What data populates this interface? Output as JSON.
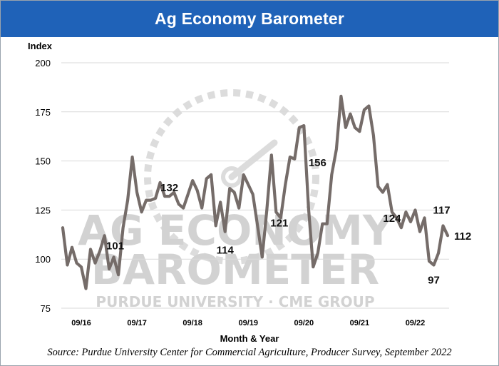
{
  "title": "Ag Economy Barometer",
  "source": "Source: Purdue University Center for Commercial Agriculture, Producer Survey, September 2022",
  "watermark": {
    "line1": "AG ECONOMY",
    "line2": "BAROMETER",
    "line3": "PURDUE UNIVERSITY · CME GROUP"
  },
  "colors": {
    "title_bar": "#1f62b8",
    "line": "#756c69",
    "watermark": "#d2d2d2"
  },
  "chart_data": {
    "type": "line",
    "title": "Ag Economy Barometer",
    "xlabel": "Month & Year",
    "ylabel": "Index",
    "ylim": [
      75,
      200
    ],
    "yticks": [
      75,
      100,
      125,
      150,
      175,
      200
    ],
    "xticks": [
      "09/16",
      "09/17",
      "09/18",
      "09/19",
      "09/20",
      "09/21",
      "09/22"
    ],
    "xtick_positions": [
      4,
      16,
      28,
      40,
      52,
      64,
      76
    ],
    "grid": "horizontal",
    "series": [
      {
        "values": [
          116,
          97,
          106,
          98,
          96,
          85,
          105,
          98,
          104,
          112,
          95,
          101,
          92,
          116,
          130,
          152,
          134,
          124,
          130,
          130,
          131,
          139,
          132,
          132,
          134,
          128,
          126,
          133,
          140,
          135,
          126,
          141,
          143,
          117,
          129,
          114,
          136,
          134,
          126,
          143,
          138,
          133,
          117,
          101,
          125,
          153,
          124,
          121,
          138,
          152,
          151,
          167,
          168,
          126,
          96,
          103,
          118,
          118,
          143,
          156,
          183,
          167,
          174,
          167,
          165,
          176,
          178,
          163,
          137,
          134,
          138,
          124,
          121,
          116,
          124,
          119,
          125,
          114,
          121,
          99,
          97,
          103,
          117,
          112
        ]
      }
    ],
    "annotations": [
      {
        "text": "101",
        "index": 11,
        "value": 101
      },
      {
        "text": "132",
        "index": 23,
        "value": 132
      },
      {
        "text": "114",
        "index": 35,
        "value": 114
      },
      {
        "text": "121",
        "index": 47,
        "value": 121
      },
      {
        "text": "156",
        "index": 59,
        "value": 156
      },
      {
        "text": "124",
        "index": 71,
        "value": 124
      },
      {
        "text": "97",
        "index": 80,
        "value": 97
      },
      {
        "text": "117",
        "index": 82,
        "value": 117
      },
      {
        "text": "112",
        "index": 83,
        "value": 112
      }
    ]
  }
}
